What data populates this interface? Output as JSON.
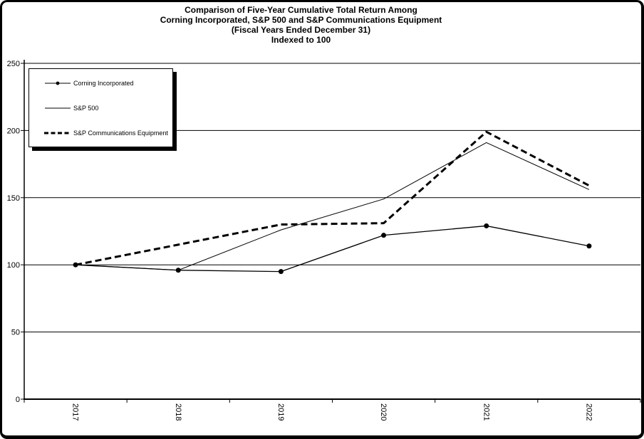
{
  "title": {
    "lines": [
      "Comparison of Five-Year Cumulative Total Return Among",
      "Corning Incorporated, S&P 500 and S&P Communications Equipment",
      "(Fiscal Years Ended December 31)",
      "Indexed to 100"
    ]
  },
  "legend": {
    "items": [
      {
        "label": "Corning Incorporated",
        "sample": "thin-line-with-dot-marker"
      },
      {
        "label": "S&P 500",
        "sample": "thin-line"
      },
      {
        "label": "S&P Communications Equipment",
        "sample": "thick-dashed-line"
      }
    ]
  },
  "chart_data": {
    "type": "line",
    "title": "Comparison of Five-Year Cumulative Total Return Among Corning Incorporated, S&P 500 and S&P Communications Equipment (Fiscal Years Ended December 31) Indexed to 100",
    "xlabel": "",
    "ylabel": "",
    "categories": [
      "2017",
      "2018",
      "2019",
      "2020",
      "2021",
      "2022"
    ],
    "series": [
      {
        "name": "Corning Incorporated",
        "style": "solid-with-markers",
        "values": [
          100,
          96,
          95,
          122,
          129,
          114
        ]
      },
      {
        "name": "S&P 500",
        "style": "solid-thin",
        "values": [
          100,
          96,
          126,
          149,
          191,
          156
        ]
      },
      {
        "name": "S&P Communications Equipment",
        "style": "dashed-thick",
        "values": [
          100,
          115,
          130,
          131,
          199,
          159
        ]
      }
    ],
    "ylim": [
      0,
      250
    ],
    "yticks": [
      0,
      50,
      100,
      150,
      200,
      250
    ],
    "grid": "horizontal",
    "legend_position": "top-left",
    "x_tick_label_rotation_deg": 90,
    "colors": {
      "line": "#000000",
      "background": "#ffffff",
      "text": "#000000"
    }
  }
}
